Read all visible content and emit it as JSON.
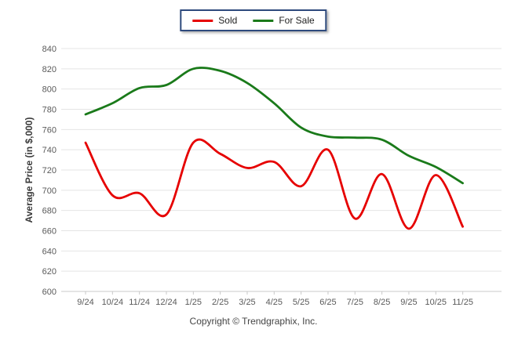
{
  "y_axis": {
    "title": "Average Price (in $,000)"
  },
  "footer": {
    "copyright": "Copyright © Trendgraphix, Inc."
  },
  "colors": {
    "sold": "#e60000",
    "for_sale": "#1a7a1a",
    "gridline": "#e4e4e4",
    "axis_line": "#c9c9c9",
    "tick_text": "#5a5a5a",
    "legend_border": "#2e4a7d"
  },
  "chart_data": {
    "type": "line",
    "title": "",
    "xlabel": "",
    "ylabel": "Average Price (in $,000)",
    "categories": [
      "9/24",
      "10/24",
      "11/24",
      "12/24",
      "1/25",
      "2/25",
      "3/25",
      "4/25",
      "5/25",
      "6/25",
      "7/25",
      "8/25",
      "9/25",
      "10/25",
      "11/25"
    ],
    "series": [
      {
        "name": "Sold",
        "color": "#e60000",
        "values": [
          747,
          695,
          697,
          676,
          747,
          736,
          722,
          728,
          704,
          740,
          672,
          716,
          662,
          715,
          664
        ]
      },
      {
        "name": "For Sale",
        "color": "#1a7a1a",
        "values": [
          775,
          786,
          801,
          804,
          820,
          818,
          806,
          786,
          762,
          753,
          752,
          750,
          734,
          723,
          707
        ]
      }
    ],
    "ylim": [
      600,
      840
    ],
    "ytick_step": 20,
    "grid": "horizontal",
    "legend_position": "top-center",
    "line_style": "smooth"
  }
}
